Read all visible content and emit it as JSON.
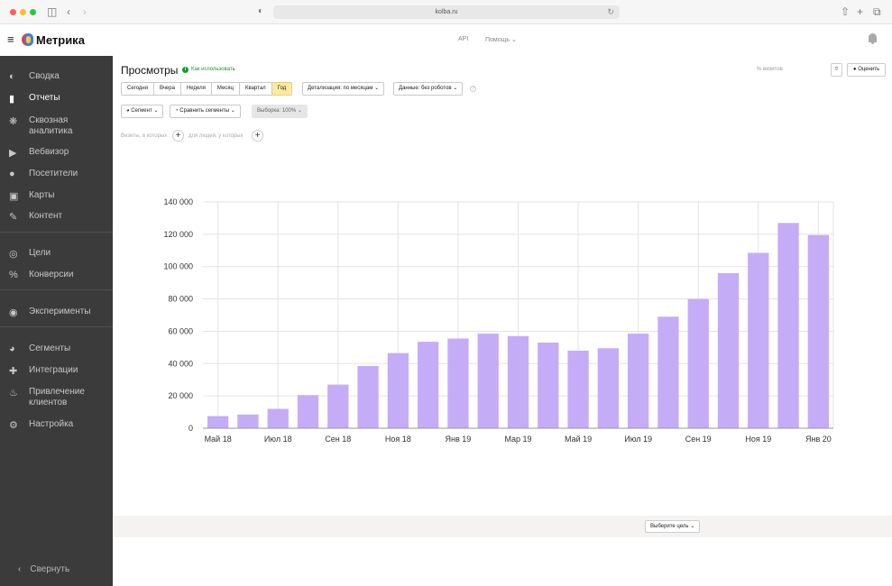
{
  "browser": {
    "url": "kolba.ru"
  },
  "header": {
    "brand": "Метрика",
    "api": "API",
    "help": "Помощь"
  },
  "sidebar": {
    "items": [
      {
        "label": "Сводка",
        "icon": "gauge-icon"
      },
      {
        "label": "Отчеты",
        "icon": "bar-chart-icon"
      },
      {
        "label": "Сквозная аналитика",
        "icon": "snowflake-icon"
      },
      {
        "label": "Вебвизор",
        "icon": "play-icon"
      },
      {
        "label": "Посетители",
        "icon": "person-icon"
      },
      {
        "label": "Карты",
        "icon": "map-icon"
      },
      {
        "label": "Контент",
        "icon": "pencil-icon"
      },
      {
        "label": "Цели",
        "icon": "target-icon"
      },
      {
        "label": "Конверсии",
        "icon": "percent-icon"
      },
      {
        "label": "Эксперименты",
        "icon": "ab-icon"
      },
      {
        "label": "Сегменты",
        "icon": "pie-icon"
      },
      {
        "label": "Интеграции",
        "icon": "puzzle-icon"
      },
      {
        "label": "Привлечение клиентов",
        "icon": "flame-icon"
      },
      {
        "label": "Настройка",
        "icon": "gear-icon"
      }
    ],
    "active_index": 1,
    "collapse": "Свернуть"
  },
  "report": {
    "title": "Просмотры",
    "howto": "Как использовать",
    "visits": "% визитов",
    "rate": "Оценить",
    "periods": [
      "Сегодня",
      "Вчера",
      "Неделя",
      "Месяц",
      "Квартал",
      "Год"
    ],
    "selected_period": "Год",
    "detail": "Детализация: по месяцам",
    "data": "Данные: без роботов",
    "segment": "Сегмент",
    "compare": "Сравнить сегменты",
    "sample": "Выборка: 100%",
    "filter_visits": "Визиты, в которых",
    "filter_people": "для людей, у которых",
    "goal": "Выберите цель"
  },
  "chart_data": {
    "type": "bar",
    "color": "#c4adf6",
    "ylim": [
      0,
      140000
    ],
    "yticks": [
      "0",
      "20 000",
      "40 000",
      "60 000",
      "80 000",
      "100 000",
      "120 000",
      "140 000"
    ],
    "xtick_labels": [
      "Май 18",
      "Июл 18",
      "Сен 18",
      "Ноя 18",
      "Янв 19",
      "Мар 19",
      "Май 19",
      "Июл 19",
      "Сен 19",
      "Ноя 19",
      "Янв 20"
    ],
    "categories": [
      "2018-05",
      "2018-06",
      "2018-07",
      "2018-08",
      "2018-09",
      "2018-10",
      "2018-11",
      "2018-12",
      "2019-01",
      "2019-02",
      "2019-03",
      "2019-04",
      "2019-05",
      "2019-06",
      "2019-07",
      "2019-08",
      "2019-09",
      "2019-10",
      "2019-11",
      "2019-12",
      "2020-01"
    ],
    "values": [
      7500,
      8500,
      12000,
      20500,
      27000,
      38500,
      46500,
      53500,
      55500,
      58500,
      57000,
      53000,
      48000,
      49500,
      58500,
      69000,
      80000,
      96000,
      108500,
      127000,
      119500
    ]
  }
}
